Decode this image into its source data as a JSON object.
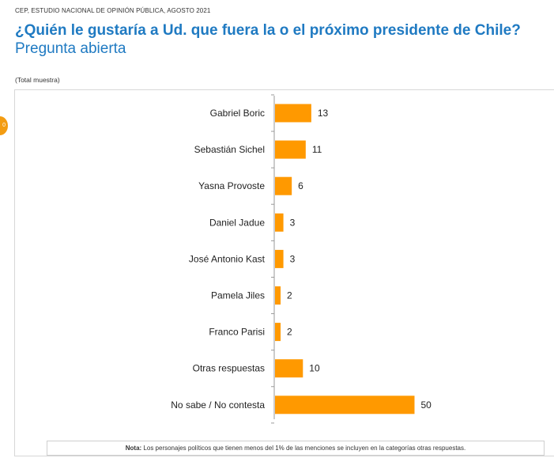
{
  "header": {
    "source": "CEP, ESTUDIO NACIONAL DE OPINIÓN PÚBLICA, AGOSTO 2021",
    "title": "¿Quién le gustaría a Ud. que fuera la o el próximo presidente de Chile?",
    "subtitle": "Pregunta abierta",
    "sample_label": "(Total muestra)"
  },
  "colors": {
    "bar": "#ff9900",
    "title": "#1f7ac2",
    "badge": "#f39c12"
  },
  "chart_data": {
    "type": "bar",
    "orientation": "horizontal",
    "categories": [
      "Gabriel Boric",
      "Sebastián Sichel",
      "Yasna Provoste",
      "Daniel Jadue",
      "José Antonio Kast",
      "Pamela Jiles",
      "Franco Parisi",
      "Otras respuestas",
      "No sabe / No contesta"
    ],
    "values": [
      13,
      11,
      6,
      3,
      3,
      2,
      2,
      10,
      50
    ],
    "xlim": [
      0,
      100
    ],
    "grid": false,
    "data_labels": true
  },
  "note": {
    "label": "Nota:",
    "text": " Los personajes políticos que tienen menos del 1% de las menciones se incluyen en la categorías otras respuestas."
  }
}
